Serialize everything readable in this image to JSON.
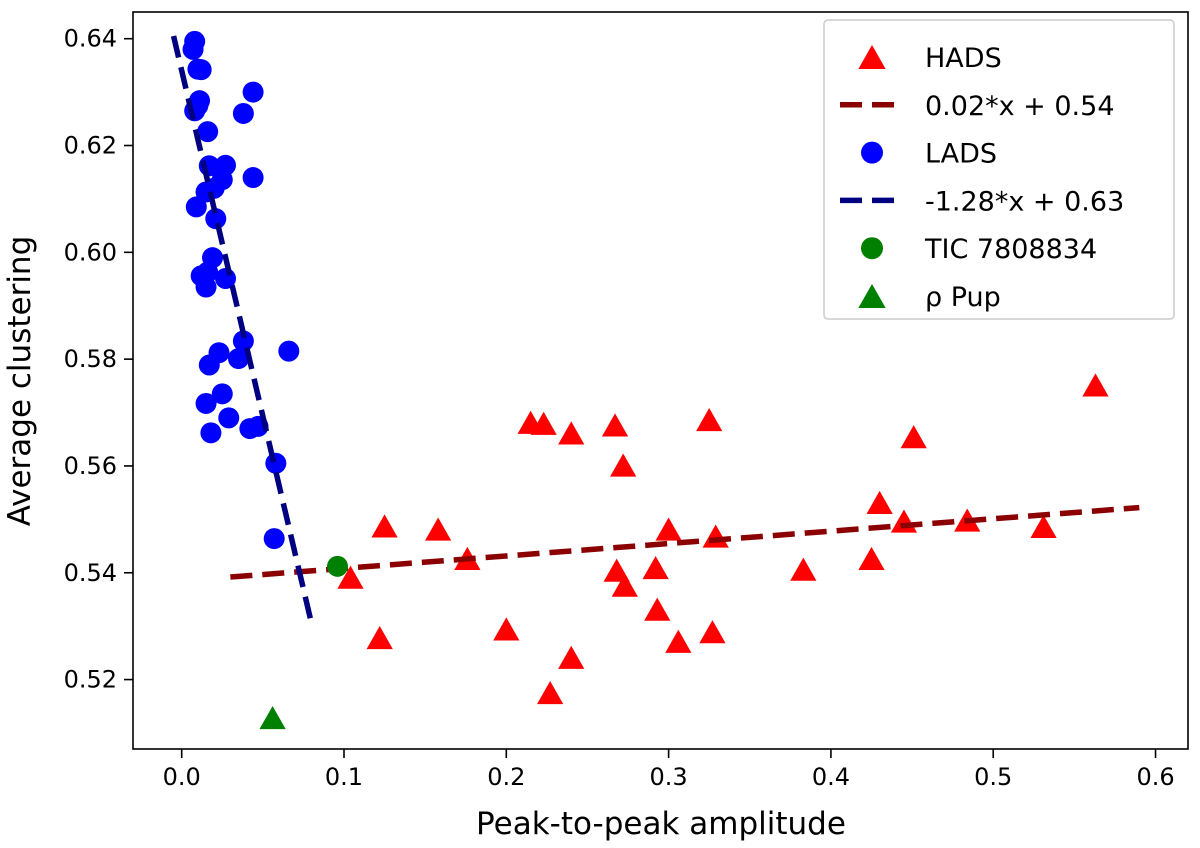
{
  "chart_data": {
    "type": "scatter",
    "title": "",
    "xlabel": "Peak-to-peak amplitude",
    "ylabel": "Average clustering",
    "xlim": [
      -0.03,
      0.62
    ],
    "ylim": [
      0.507,
      0.645
    ],
    "xticks": [
      0.0,
      0.1,
      0.2,
      0.3,
      0.4,
      0.5,
      0.6
    ],
    "xtick_labels": [
      "0.0",
      "0.1",
      "0.2",
      "0.3",
      "0.4",
      "0.5",
      "0.6"
    ],
    "yticks": [
      0.52,
      0.54,
      0.56,
      0.58,
      0.6,
      0.62,
      0.64
    ],
    "ytick_labels": [
      "0.52",
      "0.54",
      "0.56",
      "0.58",
      "0.60",
      "0.62",
      "0.64"
    ],
    "grid": false,
    "legend_position": "top-right",
    "series": [
      {
        "name": "HADS",
        "kind": "scatter",
        "marker": "triangle",
        "color": "#ff0000",
        "x": [
          0.563,
          0.325,
          0.215,
          0.223,
          0.24,
          0.267,
          0.272,
          0.451,
          0.125,
          0.158,
          0.176,
          0.104,
          0.122,
          0.2,
          0.227,
          0.24,
          0.268,
          0.273,
          0.292,
          0.293,
          0.3,
          0.306,
          0.327,
          0.329,
          0.383,
          0.425,
          0.43,
          0.445,
          0.484,
          0.531
        ],
        "y": [
          0.575,
          0.5685,
          0.568,
          0.5678,
          0.566,
          0.5675,
          0.56,
          0.5653,
          0.5486,
          0.548,
          0.5425,
          0.539,
          0.5277,
          0.5293,
          0.5174,
          0.524,
          0.5403,
          0.5375,
          0.5408,
          0.533,
          0.548,
          0.527,
          0.5288,
          0.5467,
          0.5405,
          0.5425,
          0.553,
          0.5495,
          0.5497,
          0.5485
        ]
      },
      {
        "name": "0.02*x + 0.54",
        "kind": "line",
        "style": "dashed",
        "color": "#8b0000",
        "x": [
          0.03,
          0.59
        ],
        "y": [
          0.5392,
          0.5522
        ]
      },
      {
        "name": "LADS",
        "kind": "scatter",
        "marker": "circle",
        "color": "#0000ff",
        "x": [
          0.008,
          0.007,
          0.01,
          0.012,
          0.008,
          0.011,
          0.01,
          0.016,
          0.044,
          0.038,
          0.017,
          0.025,
          0.027,
          0.02,
          0.015,
          0.044,
          0.009,
          0.021,
          0.019,
          0.027,
          0.012,
          0.016,
          0.015,
          0.066,
          0.038,
          0.035,
          0.023,
          0.017,
          0.025,
          0.015,
          0.029,
          0.047,
          0.042,
          0.018,
          0.058,
          0.057
        ],
        "y": [
          0.6395,
          0.638,
          0.6343,
          0.6342,
          0.6265,
          0.6284,
          0.6275,
          0.6226,
          0.63,
          0.626,
          0.6162,
          0.6136,
          0.6163,
          0.612,
          0.6113,
          0.614,
          0.6085,
          0.6063,
          0.599,
          0.5951,
          0.5956,
          0.5963,
          0.5935,
          0.5815,
          0.5834,
          0.5801,
          0.5812,
          0.5789,
          0.5735,
          0.5717,
          0.569,
          0.5674,
          0.567,
          0.5662,
          0.5605,
          0.5464
        ]
      },
      {
        "name": "-1.28*x + 0.63",
        "kind": "line",
        "style": "dashed",
        "color": "#000080",
        "x": [
          -0.005,
          0.08
        ],
        "y": [
          0.6405,
          0.5305
        ]
      },
      {
        "name": "TIC 7808834",
        "kind": "scatter",
        "marker": "circle",
        "color": "#008000",
        "x": [
          0.096
        ],
        "y": [
          0.5412
        ]
      },
      {
        "name": "ρ Pup",
        "kind": "scatter",
        "marker": "triangle",
        "color": "#008000",
        "x": [
          0.056
        ],
        "y": [
          0.5127
        ]
      }
    ]
  }
}
